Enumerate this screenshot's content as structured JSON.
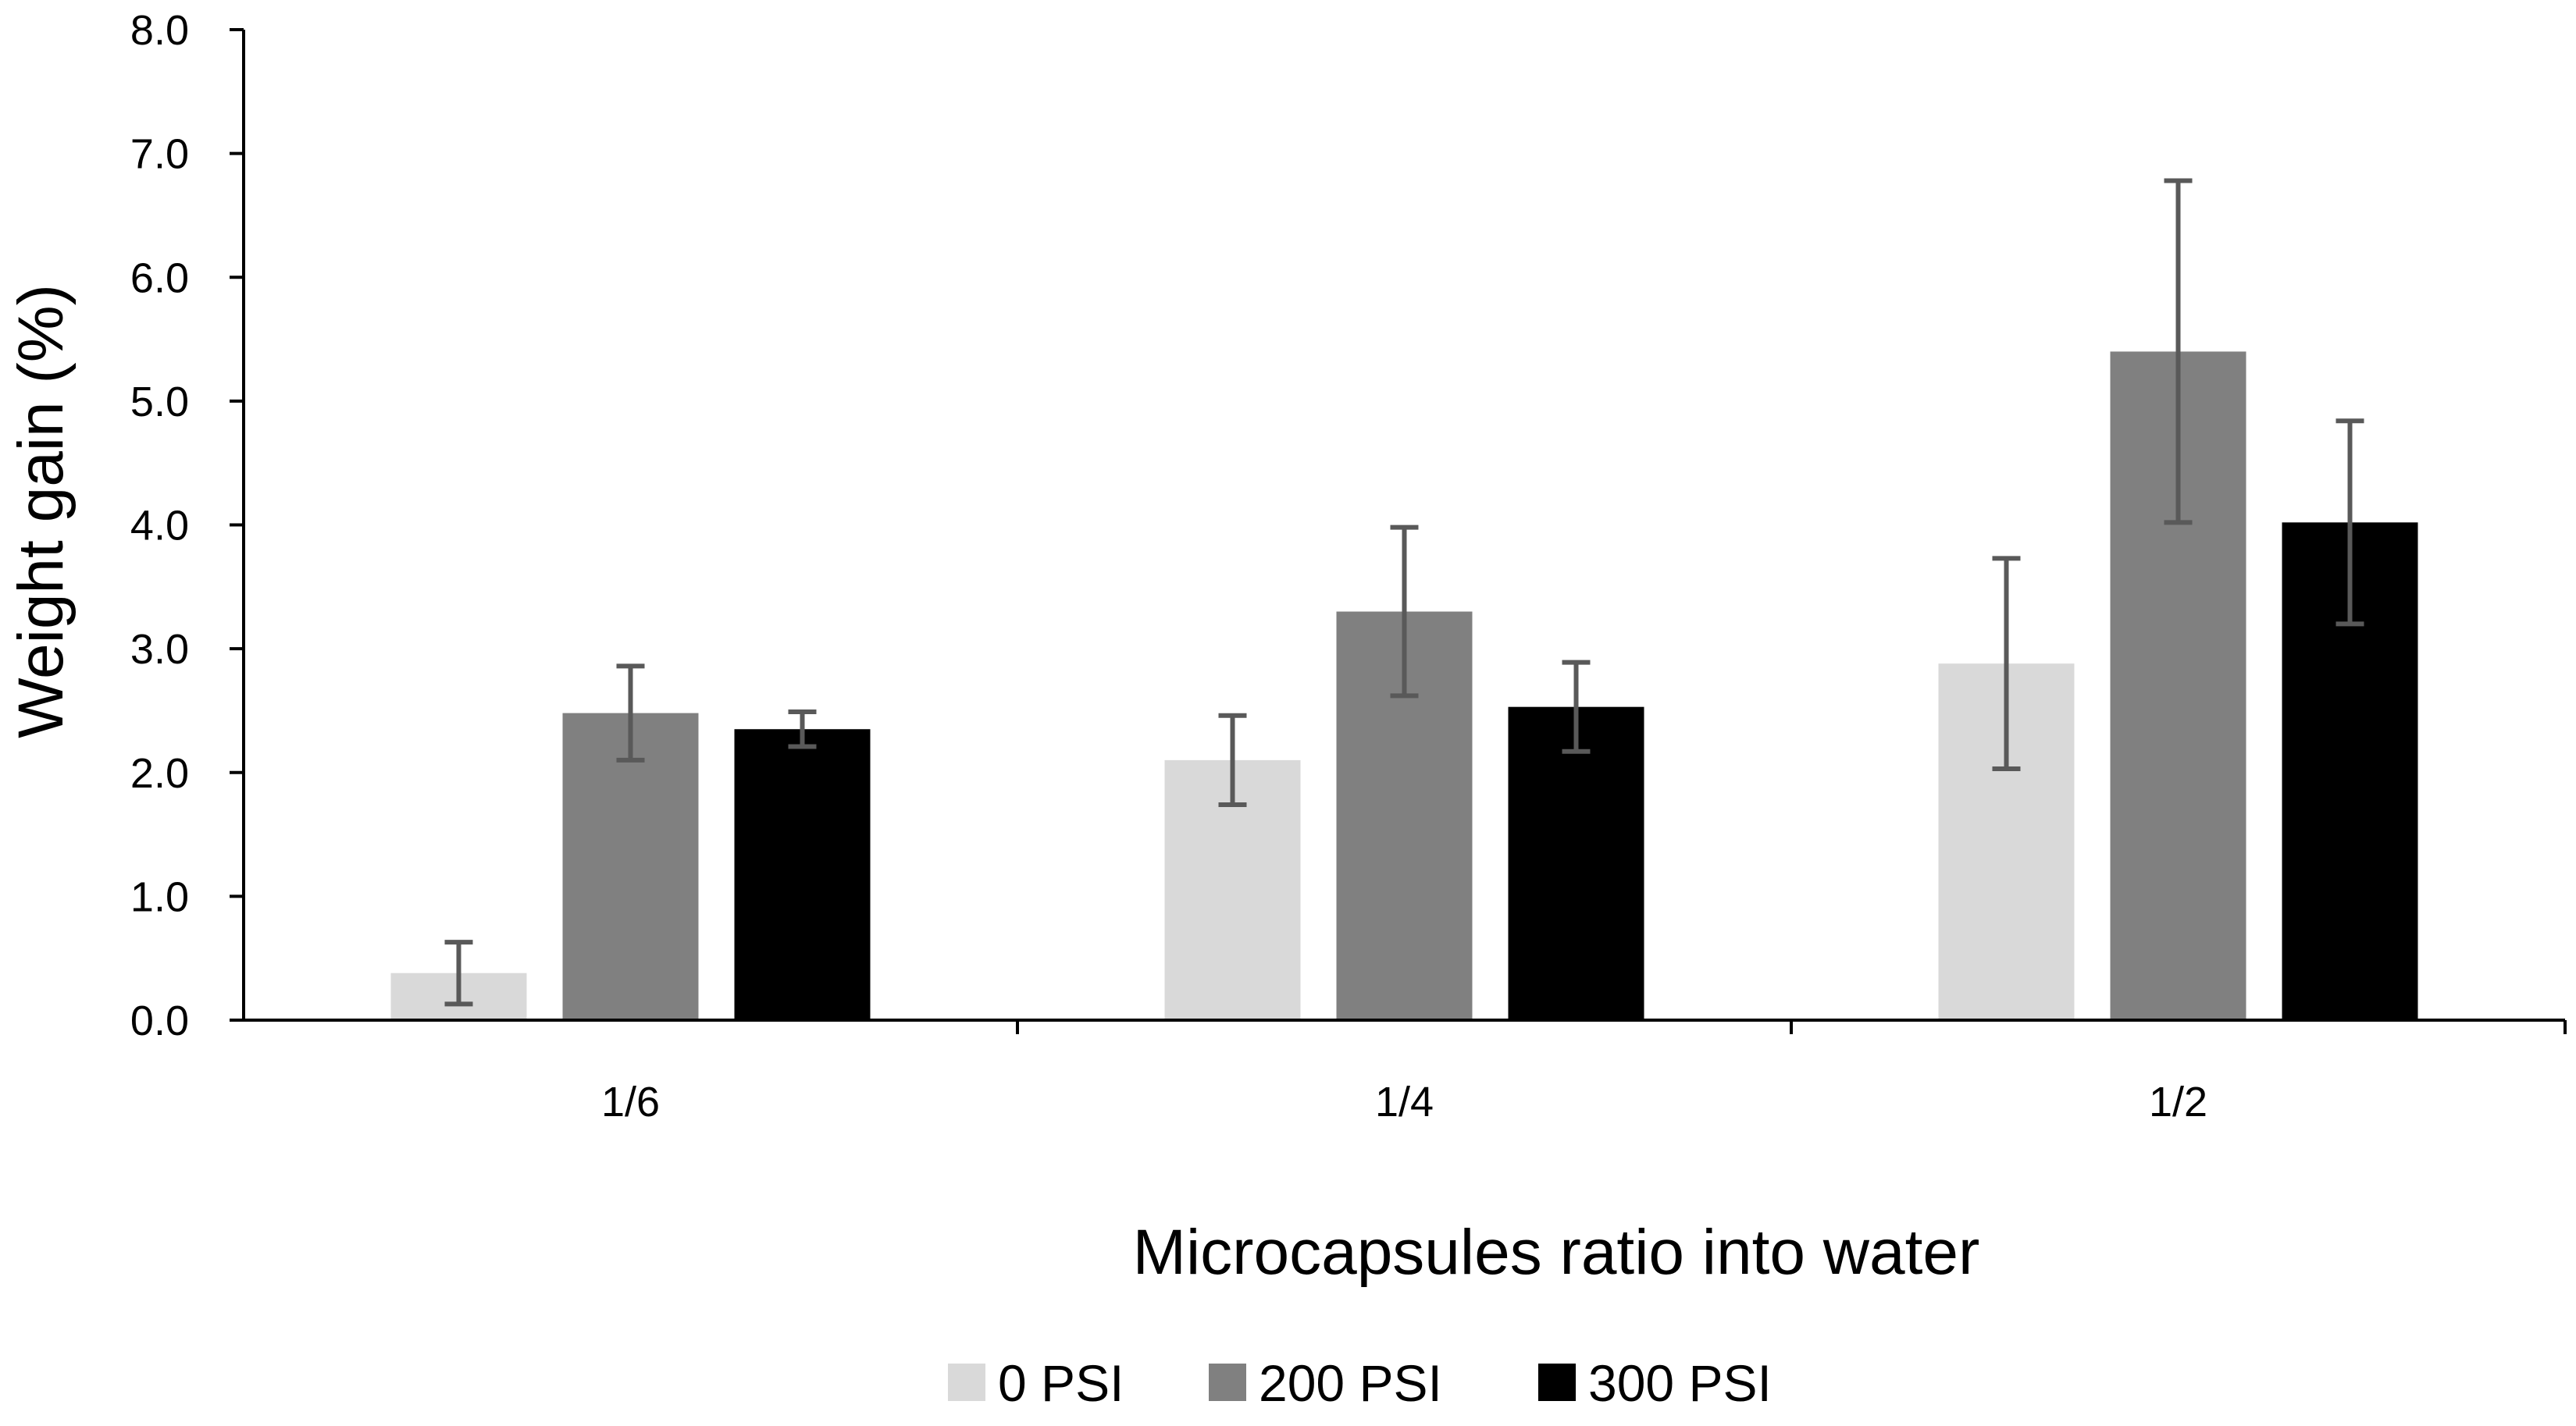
{
  "chart_data": {
    "type": "bar",
    "title": "",
    "xlabel": "Microcapsules ratio into water",
    "ylabel": "Weight gain (%)",
    "ylim": [
      0,
      8
    ],
    "ytick_step": 1,
    "ytick_labels": [
      "0.0",
      "1.0",
      "2.0",
      "3.0",
      "4.0",
      "5.0",
      "6.0",
      "7.0",
      "8.0"
    ],
    "grid": false,
    "legend_position": "bottom",
    "categories": [
      "1/6",
      "1/4",
      "1/2"
    ],
    "series": [
      {
        "name": "0 PSI",
        "color": "#d9d9d9",
        "values": [
          0.38,
          2.1,
          2.88
        ],
        "errors": [
          0.25,
          0.36,
          0.85
        ]
      },
      {
        "name": "200 PSI",
        "color": "#808080",
        "values": [
          2.48,
          3.3,
          5.4
        ],
        "errors": [
          0.38,
          0.68,
          1.38
        ]
      },
      {
        "name": "300 PSI",
        "color": "#000000",
        "values": [
          2.35,
          2.53,
          4.02
        ],
        "errors": [
          0.14,
          0.36,
          0.82
        ]
      }
    ],
    "error_bar_color": "#595959"
  }
}
